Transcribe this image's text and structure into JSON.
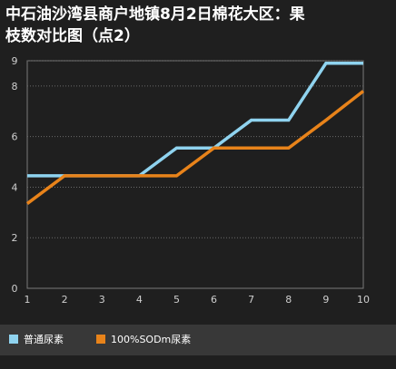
{
  "chart_data": {
    "type": "line",
    "title_line1": "中石油沙湾县商户地镇8月2日棉花大区：果",
    "title_line2": "枝数对比图（点2）",
    "x": [
      1,
      2,
      3,
      4,
      5,
      6,
      7,
      8,
      9,
      10
    ],
    "ylim": [
      0,
      9
    ],
    "yticks": [
      0,
      2,
      4,
      6,
      8
    ],
    "yticks_extra": [
      9
    ],
    "grid": true,
    "legend_position": "bottom",
    "series": [
      {
        "name": "普通尿素",
        "color": "#8fd3ef",
        "values": [
          4.45,
          4.45,
          4.45,
          4.45,
          5.55,
          5.55,
          6.65,
          6.65,
          8.9,
          8.9
        ]
      },
      {
        "name": "100%SODm尿素",
        "color": "#e8831a",
        "values": [
          3.35,
          4.45,
          4.45,
          4.45,
          4.45,
          5.55,
          5.55,
          5.55,
          6.65,
          7.8
        ]
      }
    ]
  }
}
